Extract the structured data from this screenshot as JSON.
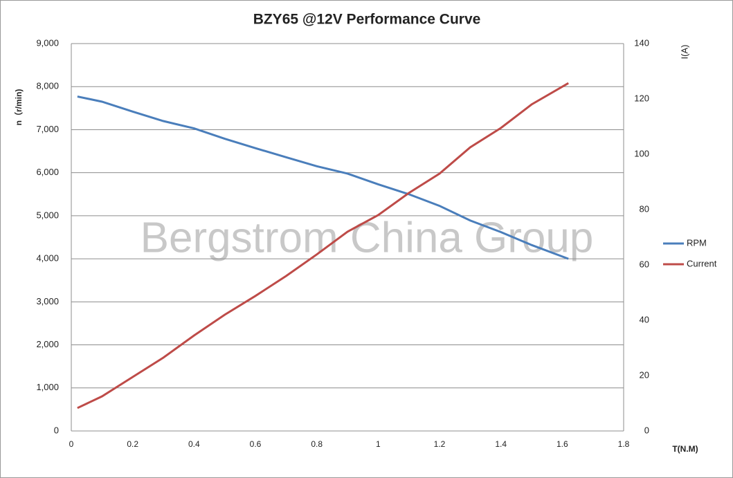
{
  "chart_data": {
    "type": "line",
    "title": "BZY65 @12V Performance Curve",
    "y_label": "n（r/min)",
    "y2_label": "I(A)",
    "x_label": "T(N.M)",
    "annotation": "Bergstrom China Group",
    "x": [
      0.02,
      0.1,
      0.2,
      0.3,
      0.4,
      0.5,
      0.6,
      0.7,
      0.8,
      0.9,
      1.0,
      1.1,
      1.2,
      1.3,
      1.4,
      1.5,
      1.62
    ],
    "series": [
      {
        "name": "RPM",
        "color": "#4a7ebb",
        "values": [
          7770,
          7650,
          7420,
          7200,
          7030,
          6790,
          6570,
          6360,
          6150,
          5980,
          5730,
          5500,
          5230,
          4890,
          4620,
          4320,
          4000
        ]
      },
      {
        "name": "Current",
        "color": "#be4b48",
        "axis": "y2",
        "values": [
          8.3,
          12.5,
          19.5,
          26.5,
          34.5,
          42,
          48.8,
          56,
          63.8,
          72,
          78,
          86,
          93,
          102.5,
          109.5,
          118,
          125.7
        ]
      }
    ],
    "xlim": [
      0,
      1.8
    ],
    "xticks": [
      0,
      0.2,
      0.4,
      0.6,
      0.8,
      1,
      1.2,
      1.4,
      1.6,
      1.8
    ],
    "ylim": [
      0,
      9000
    ],
    "yticks": [
      0,
      {
        "value": 1000,
        "label": "1,000"
      },
      {
        "value": 2000,
        "label": "2,000"
      },
      {
        "value": 3000,
        "label": "3,000"
      },
      {
        "value": 4000,
        "label": "4,000"
      },
      {
        "value": 5000,
        "label": "5,000"
      },
      {
        "value": 6000,
        "label": "6,000"
      },
      {
        "value": 7000,
        "label": "7,000"
      },
      {
        "value": 8000,
        "label": "8,000"
      },
      {
        "value": 9000,
        "label": "9,000"
      }
    ],
    "y2lim": [
      0,
      140
    ],
    "y2ticks": [
      0,
      20,
      40,
      60,
      80,
      100,
      120,
      140
    ],
    "grid": true,
    "legend": "right"
  }
}
